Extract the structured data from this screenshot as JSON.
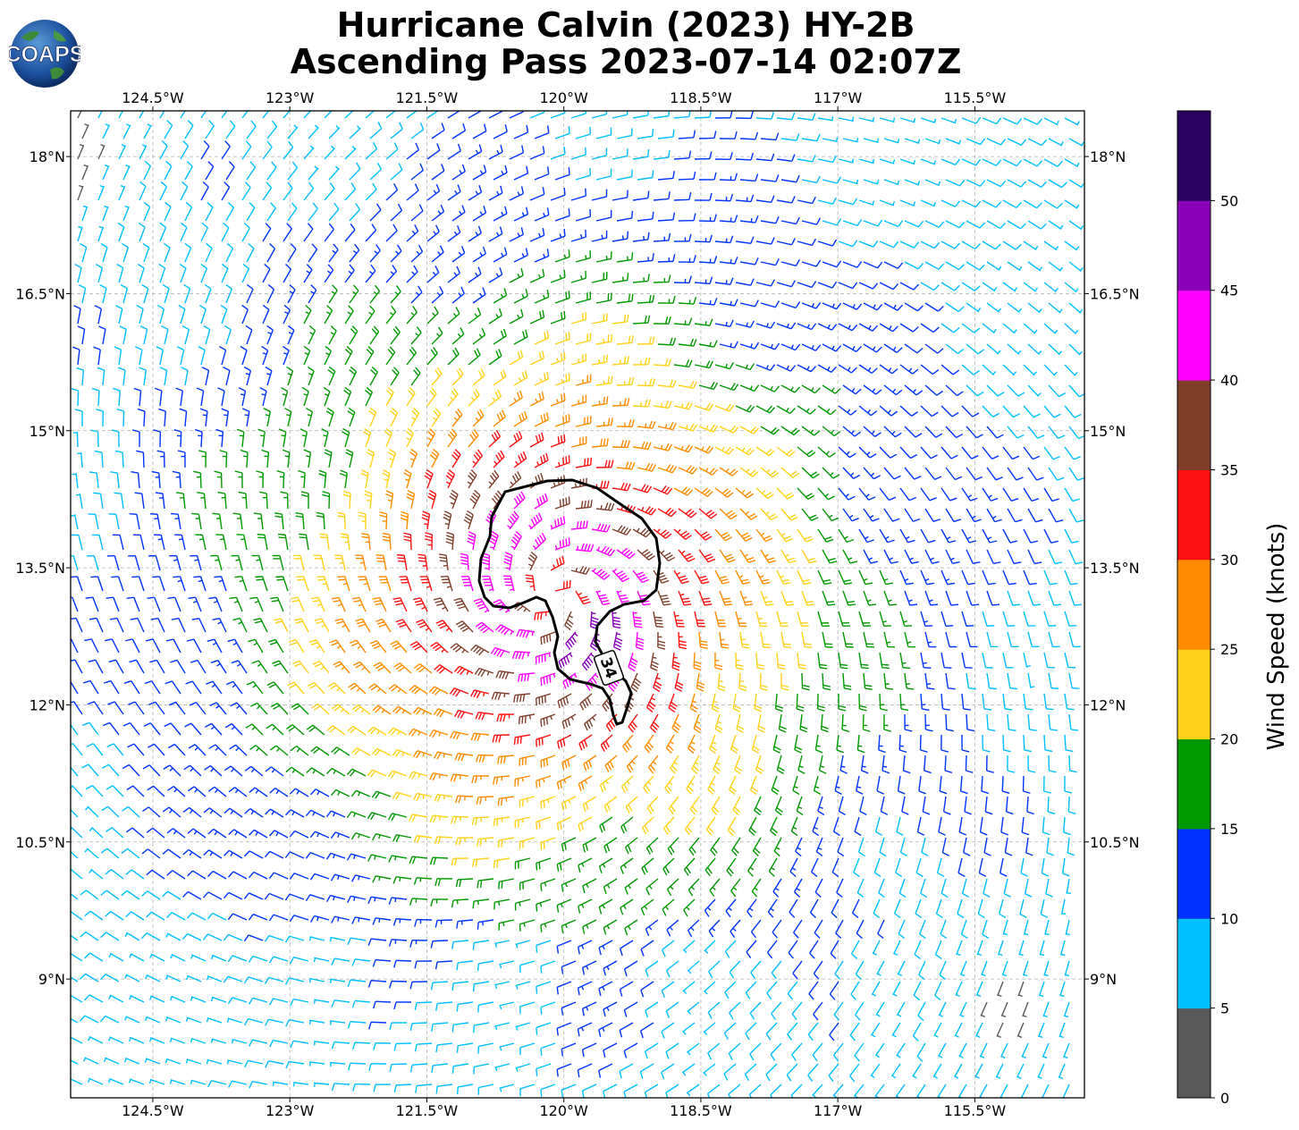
{
  "header": {
    "title_line1": "Hurricane Calvin (2023) HY-2B",
    "title_line2": "Ascending Pass 2023-07-14 02:07Z",
    "logo_text": "COAPS"
  },
  "map": {
    "lon_ticks": [
      "124.5°W",
      "123°W",
      "121.5°W",
      "120°W",
      "118.5°W",
      "117°W",
      "115.5°W"
    ],
    "lat_ticks": [
      "18°N",
      "16.5°N",
      "15°N",
      "13.5°N",
      "12°N",
      "10.5°N",
      "9°N"
    ],
    "lon_range": [
      -125.4,
      -114.3
    ],
    "lat_range": [
      7.7,
      18.5
    ],
    "grid": "dashed",
    "storm_center": {
      "lon": -120.1,
      "lat": 13.2
    },
    "contour_label": "34"
  },
  "colorbar": {
    "label": "Wind Speed (knots)",
    "ticks": [
      "0",
      "5",
      "10",
      "15",
      "20",
      "25",
      "30",
      "35",
      "40",
      "45",
      "50"
    ],
    "bins": [
      {
        "from": 0,
        "to": 5,
        "color": "#595959"
      },
      {
        "from": 5,
        "to": 10,
        "color": "#00bfff"
      },
      {
        "from": 10,
        "to": 15,
        "color": "#0033ff"
      },
      {
        "from": 15,
        "to": 20,
        "color": "#009900"
      },
      {
        "from": 20,
        "to": 25,
        "color": "#ffd21a"
      },
      {
        "from": 25,
        "to": 30,
        "color": "#ff8c00"
      },
      {
        "from": 30,
        "to": 35,
        "color": "#ff1111"
      },
      {
        "from": 35,
        "to": 40,
        "color": "#7f3f2b"
      },
      {
        "from": 40,
        "to": 45,
        "color": "#ff00ff"
      },
      {
        "from": 45,
        "to": 50,
        "color": "#8a00b8"
      },
      {
        "from": 50,
        "to": 55,
        "color": "#2b0060"
      }
    ]
  }
}
